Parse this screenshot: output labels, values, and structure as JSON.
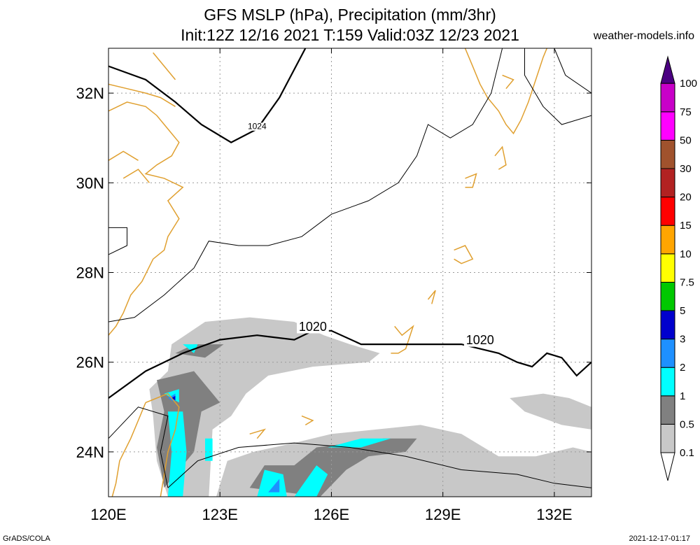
{
  "header": {
    "title_line1": "GFS MSLP (hPa), Precipitation (mm/3hr)",
    "title_line2": "Init:12Z 12/16 2021 T:159 Valid:03Z 12/23 2021",
    "site": "weather-models.info"
  },
  "footer": {
    "left": "GrADS/COLA",
    "right": "2021-12-17-01:17"
  },
  "map": {
    "lon_range": [
      120,
      133
    ],
    "lat_range": [
      23,
      33
    ],
    "x_ticks": [
      {
        "value": 120,
        "label": "120E"
      },
      {
        "value": 123,
        "label": "123E"
      },
      {
        "value": 126,
        "label": "126E"
      },
      {
        "value": 129,
        "label": "129E"
      },
      {
        "value": 132,
        "label": "132E"
      }
    ],
    "y_ticks": [
      {
        "value": 24,
        "label": "24N"
      },
      {
        "value": 26,
        "label": "26N"
      },
      {
        "value": 28,
        "label": "28N"
      },
      {
        "value": 30,
        "label": "30N"
      },
      {
        "value": 32,
        "label": "32N"
      }
    ],
    "grid": true,
    "coastline_color": "#e0a030",
    "isobar_labels": [
      {
        "label": "1024",
        "lon": 124.0,
        "lat": 31.2
      },
      {
        "label": "1020",
        "lon": 125.5,
        "lat": 26.7
      },
      {
        "label": "1020",
        "lon": 130.0,
        "lat": 26.4
      }
    ],
    "isobars": [
      {
        "level": 1024,
        "bold": true,
        "points": [
          [
            120.0,
            32.6
          ],
          [
            121.0,
            32.3
          ],
          [
            121.8,
            31.8
          ],
          [
            122.5,
            31.3
          ],
          [
            123.3,
            30.9
          ],
          [
            124.0,
            31.2
          ],
          [
            124.6,
            31.9
          ],
          [
            125.3,
            33.0
          ]
        ]
      },
      {
        "level": 1020,
        "bold": true,
        "points": [
          [
            120.0,
            25.2
          ],
          [
            121.0,
            25.8
          ],
          [
            122.0,
            26.2
          ],
          [
            123.0,
            26.5
          ],
          [
            124.0,
            26.6
          ],
          [
            125.0,
            26.5
          ],
          [
            125.5,
            26.7
          ],
          [
            126.0,
            26.7
          ],
          [
            126.8,
            26.4
          ],
          [
            127.5,
            26.4
          ],
          [
            128.5,
            26.4
          ],
          [
            129.5,
            26.4
          ],
          [
            130.5,
            26.2
          ],
          [
            131.0,
            26.0
          ],
          [
            131.4,
            25.9
          ],
          [
            131.8,
            26.2
          ],
          [
            132.2,
            26.1
          ],
          [
            132.6,
            25.7
          ],
          [
            133.0,
            26.0
          ]
        ]
      },
      {
        "level": null,
        "bold": false,
        "points": [
          [
            120.0,
            26.9
          ],
          [
            120.7,
            27.0
          ],
          [
            121.5,
            27.5
          ],
          [
            122.3,
            28.1
          ],
          [
            122.7,
            28.7
          ],
          [
            123.5,
            28.6
          ],
          [
            124.3,
            28.6
          ],
          [
            125.2,
            28.8
          ],
          [
            126.0,
            29.3
          ],
          [
            127.0,
            29.6
          ],
          [
            127.8,
            30.0
          ],
          [
            128.3,
            30.6
          ],
          [
            128.6,
            31.3
          ],
          [
            129.2,
            31.0
          ],
          [
            129.8,
            31.3
          ],
          [
            130.3,
            32.0
          ],
          [
            130.6,
            33.0
          ]
        ]
      },
      {
        "level": null,
        "bold": false,
        "points": [
          [
            131.2,
            33.0
          ],
          [
            131.2,
            32.4
          ],
          [
            131.7,
            31.7
          ],
          [
            132.2,
            31.3
          ],
          [
            133.0,
            31.5
          ]
        ]
      },
      {
        "level": null,
        "bold": false,
        "points": [
          [
            132.0,
            33.0
          ],
          [
            132.3,
            32.4
          ],
          [
            133.0,
            32.0
          ]
        ]
      },
      {
        "level": null,
        "bold": false,
        "points": [
          [
            120.0,
            24.3
          ],
          [
            120.8,
            25.0
          ],
          [
            121.6,
            24.8
          ],
          [
            121.4,
            24.0
          ],
          [
            121.6,
            23.2
          ]
        ]
      },
      {
        "level": null,
        "bold": false,
        "points": [
          [
            121.6,
            23.2
          ],
          [
            122.4,
            23.8
          ],
          [
            123.5,
            24.1
          ],
          [
            125.0,
            24.2
          ],
          [
            126.5,
            24.1
          ],
          [
            128.0,
            23.9
          ],
          [
            129.5,
            23.6
          ],
          [
            131.0,
            23.5
          ],
          [
            132.0,
            23.3
          ],
          [
            133.0,
            23.2
          ]
        ]
      },
      {
        "level": null,
        "bold": false,
        "points": [
          [
            120.0,
            29.0
          ],
          [
            120.5,
            29.0
          ],
          [
            120.5,
            28.6
          ],
          [
            120.0,
            28.4
          ]
        ]
      }
    ],
    "precip_bins": [
      "0.1",
      "0.5",
      "1",
      "2",
      "3",
      "5",
      "7.5",
      "10",
      "15",
      "20",
      "30",
      "50",
      "75",
      "100"
    ],
    "precip_areas": [
      {
        "bin": "0.1",
        "points": [
          [
            121.7,
            26.4
          ],
          [
            122.6,
            26.9
          ],
          [
            123.8,
            27.0
          ],
          [
            125.0,
            26.9
          ],
          [
            125.8,
            26.6
          ],
          [
            126.5,
            26.4
          ],
          [
            127.3,
            26.2
          ],
          [
            127.0,
            26.0
          ],
          [
            125.5,
            25.9
          ],
          [
            124.3,
            25.7
          ],
          [
            123.7,
            25.3
          ],
          [
            123.3,
            24.8
          ],
          [
            122.8,
            24.5
          ],
          [
            122.7,
            23.0
          ],
          [
            121.6,
            23.0
          ],
          [
            121.3,
            23.8
          ],
          [
            121.2,
            24.8
          ],
          [
            121.1,
            25.4
          ],
          [
            121.6,
            25.8
          ]
        ]
      },
      {
        "bin": "0.1",
        "points": [
          [
            122.9,
            23.0
          ],
          [
            123.2,
            23.8
          ],
          [
            123.9,
            24.0
          ],
          [
            125.0,
            24.2
          ],
          [
            126.0,
            24.4
          ],
          [
            127.2,
            24.5
          ],
          [
            128.4,
            24.6
          ],
          [
            129.5,
            24.4
          ],
          [
            130.5,
            23.9
          ],
          [
            131.5,
            23.9
          ],
          [
            132.5,
            24.1
          ],
          [
            133.0,
            24.0
          ],
          [
            133.0,
            23.0
          ]
        ]
      },
      {
        "bin": "0.1",
        "points": [
          [
            130.8,
            25.2
          ],
          [
            131.7,
            25.3
          ],
          [
            132.4,
            25.2
          ],
          [
            133.0,
            25.0
          ],
          [
            133.0,
            24.5
          ],
          [
            132.2,
            24.6
          ],
          [
            131.2,
            24.9
          ]
        ]
      },
      {
        "bin": "0.5",
        "points": [
          [
            121.8,
            26.2
          ],
          [
            122.3,
            26.4
          ],
          [
            123.1,
            26.4
          ],
          [
            122.6,
            26.1
          ]
        ]
      },
      {
        "bin": "0.5",
        "points": [
          [
            121.3,
            25.6
          ],
          [
            122.3,
            25.8
          ],
          [
            123.0,
            25.1
          ],
          [
            122.5,
            24.9
          ],
          [
            122.3,
            24.0
          ],
          [
            121.5,
            23.2
          ],
          [
            121.3,
            24.1
          ],
          [
            121.5,
            24.9
          ]
        ]
      },
      {
        "bin": "0.5",
        "points": [
          [
            123.8,
            23.2
          ],
          [
            124.2,
            23.7
          ],
          [
            125.0,
            23.7
          ],
          [
            125.6,
            24.1
          ],
          [
            126.5,
            24.2
          ],
          [
            127.4,
            24.3
          ],
          [
            128.3,
            24.3
          ],
          [
            128.0,
            24.0
          ],
          [
            127.0,
            23.9
          ],
          [
            126.4,
            23.6
          ],
          [
            125.7,
            23.0
          ]
        ]
      },
      {
        "bin": "1",
        "points": [
          [
            121.5,
            25.3
          ],
          [
            121.9,
            25.4
          ],
          [
            121.9,
            25.1
          ]
        ]
      },
      {
        "bin": "1",
        "points": [
          [
            121.6,
            24.9
          ],
          [
            122.0,
            24.9
          ],
          [
            122.1,
            24.0
          ],
          [
            122.0,
            23.0
          ],
          [
            121.6,
            23.0
          ],
          [
            121.7,
            24.0
          ]
        ]
      },
      {
        "bin": "1",
        "points": [
          [
            122.0,
            26.4
          ],
          [
            122.4,
            26.4
          ],
          [
            122.3,
            26.2
          ]
        ]
      },
      {
        "bin": "1",
        "points": [
          [
            124.0,
            23.0
          ],
          [
            124.2,
            23.6
          ],
          [
            124.7,
            23.5
          ],
          [
            124.8,
            23.0
          ]
        ]
      },
      {
        "bin": "1",
        "points": [
          [
            125.0,
            23.0
          ],
          [
            125.6,
            23.7
          ],
          [
            125.9,
            23.5
          ],
          [
            125.6,
            23.0
          ]
        ]
      },
      {
        "bin": "1",
        "points": [
          [
            125.9,
            24.1
          ],
          [
            126.8,
            24.3
          ],
          [
            127.6,
            24.3
          ],
          [
            126.8,
            24.1
          ]
        ]
      },
      {
        "bin": "1",
        "points": [
          [
            122.6,
            24.3
          ],
          [
            122.8,
            24.3
          ],
          [
            122.8,
            23.8
          ],
          [
            122.6,
            23.8
          ]
        ]
      },
      {
        "bin": "2",
        "points": [
          [
            121.6,
            25.2
          ],
          [
            121.8,
            25.3
          ],
          [
            121.8,
            25.1
          ]
        ]
      },
      {
        "bin": "2",
        "points": [
          [
            124.3,
            23.1
          ],
          [
            124.6,
            23.4
          ],
          [
            124.6,
            23.1
          ]
        ]
      },
      {
        "bin": "3",
        "points": [
          [
            121.7,
            25.2
          ],
          [
            121.8,
            25.25
          ],
          [
            121.8,
            25.15
          ]
        ]
      }
    ],
    "colorbar_colors": {
      "0.1": "#c8c8c8",
      "0.5": "#808080",
      "1": "#00ffff",
      "2": "#1e90ff",
      "3": "#0000cd",
      "5": "#00c800",
      "7.5": "#ffff00",
      "10": "#ffa500",
      "15": "#ff0000",
      "20": "#b22222",
      "30": "#a0522d",
      "50": "#ff00ff",
      "75": "#c800c8",
      "100": "#8000c0",
      "over": "#4b0082"
    },
    "coast_lines": [
      [
        [
          120.0,
          31.6
        ],
        [
          120.5,
          31.8
        ],
        [
          121.0,
          31.7
        ],
        [
          121.3,
          31.5
        ],
        [
          121.6,
          31.2
        ],
        [
          121.9,
          30.9
        ],
        [
          121.7,
          30.6
        ],
        [
          121.3,
          30.4
        ],
        [
          121.0,
          30.2
        ],
        [
          121.5,
          30.1
        ],
        [
          122.0,
          29.9
        ],
        [
          121.6,
          29.6
        ],
        [
          121.9,
          29.2
        ],
        [
          121.6,
          28.8
        ],
        [
          121.5,
          28.5
        ],
        [
          121.2,
          28.3
        ],
        [
          120.9,
          27.8
        ],
        [
          120.6,
          27.5
        ],
        [
          120.4,
          27.1
        ],
        [
          120.2,
          26.8
        ],
        [
          120.0,
          26.6
        ]
      ],
      [
        [
          120.0,
          32.2
        ],
        [
          120.5,
          32.1
        ],
        [
          121.0,
          32.0
        ],
        [
          121.4,
          31.9
        ],
        [
          121.8,
          31.7
        ]
      ],
      [
        [
          121.2,
          32.9
        ],
        [
          121.5,
          32.6
        ],
        [
          121.8,
          32.3
        ]
      ],
      [
        [
          120.4,
          30.1
        ],
        [
          120.8,
          30.3
        ],
        [
          121.1,
          30.0
        ]
      ],
      [
        [
          120.0,
          30.5
        ],
        [
          120.4,
          30.7
        ],
        [
          120.8,
          30.5
        ]
      ],
      [
        [
          121.0,
          25.1
        ],
        [
          121.3,
          25.2
        ],
        [
          121.6,
          25.3
        ],
        [
          121.9,
          25.0
        ],
        [
          121.8,
          24.5
        ],
        [
          121.6,
          24.0
        ],
        [
          121.5,
          23.5
        ],
        [
          121.4,
          23.0
        ]
      ],
      [
        [
          121.0,
          25.1
        ],
        [
          120.8,
          24.7
        ],
        [
          120.6,
          24.3
        ],
        [
          120.3,
          23.8
        ],
        [
          120.2,
          23.3
        ],
        [
          120.1,
          23.0
        ]
      ],
      [
        [
          129.6,
          33.0
        ],
        [
          129.8,
          32.6
        ],
        [
          130.0,
          32.2
        ],
        [
          130.2,
          31.9
        ],
        [
          130.5,
          31.6
        ],
        [
          130.7,
          31.3
        ],
        [
          130.9,
          31.1
        ],
        [
          131.1,
          31.4
        ],
        [
          131.3,
          31.8
        ],
        [
          131.5,
          32.3
        ],
        [
          131.7,
          32.8
        ],
        [
          131.8,
          33.0
        ]
      ],
      [
        [
          130.6,
          32.4
        ],
        [
          130.9,
          32.3
        ],
        [
          130.7,
          32.1
        ]
      ],
      [
        [
          130.4,
          30.6
        ],
        [
          130.6,
          30.8
        ],
        [
          130.7,
          30.4
        ],
        [
          130.5,
          30.3
        ]
      ],
      [
        [
          129.6,
          30.1
        ],
        [
          129.9,
          30.2
        ],
        [
          129.8,
          29.9
        ],
        [
          129.6,
          29.9
        ]
      ],
      [
        [
          129.3,
          28.5
        ],
        [
          129.6,
          28.6
        ],
        [
          129.8,
          28.3
        ],
        [
          129.5,
          28.2
        ],
        [
          129.3,
          28.3
        ]
      ],
      [
        [
          127.7,
          26.8
        ],
        [
          127.9,
          26.6
        ],
        [
          128.2,
          26.8
        ],
        [
          128.0,
          26.3
        ],
        [
          127.8,
          26.2
        ],
        [
          127.6,
          26.2
        ]
      ],
      [
        [
          125.2,
          24.8
        ],
        [
          125.5,
          24.7
        ],
        [
          125.3,
          24.6
        ]
      ],
      [
        [
          123.8,
          24.4
        ],
        [
          124.2,
          24.5
        ],
        [
          124.0,
          24.3
        ]
      ],
      [
        [
          128.6,
          27.4
        ],
        [
          128.8,
          27.6
        ],
        [
          128.7,
          27.3
        ]
      ]
    ]
  }
}
